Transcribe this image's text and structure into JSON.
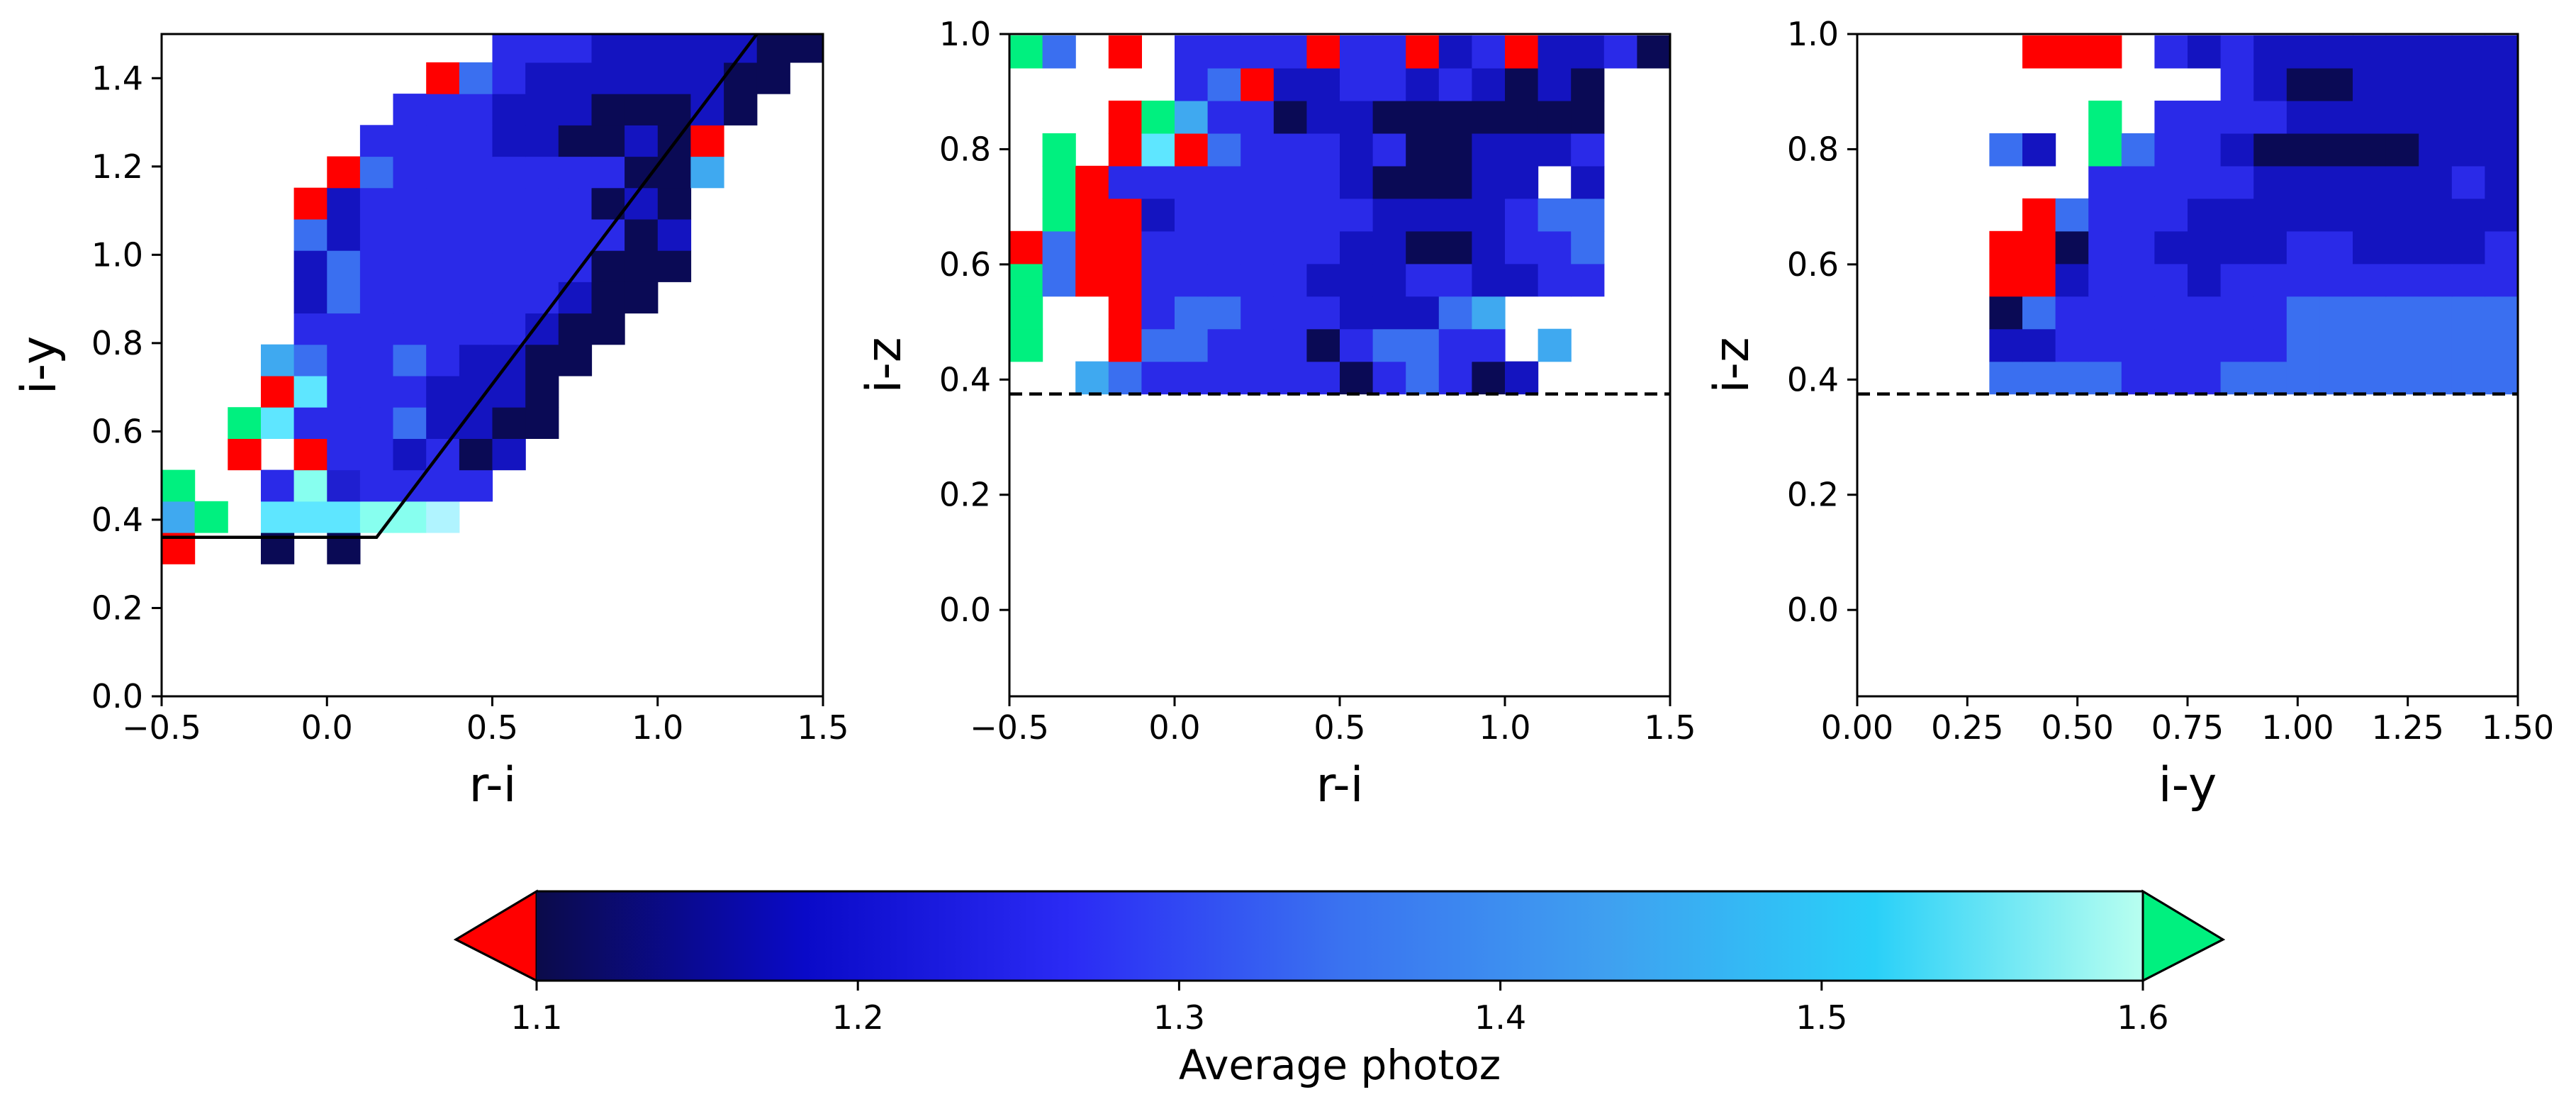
{
  "chart_data": [
    {
      "type": "heatmap",
      "xlabel": "r-i",
      "ylabel": "i-y",
      "xlim": [
        -0.5,
        1.5
      ],
      "ylim": [
        0.0,
        1.5
      ],
      "xticks": [
        "−0.5",
        "0.0",
        "0.5",
        "1.0",
        "1.5"
      ],
      "yticks": [
        "0.0",
        "0.2",
        "0.4",
        "0.6",
        "0.8",
        "1.0",
        "1.2",
        "1.4"
      ],
      "grid": false,
      "cell_size": 0.1,
      "row_y_start": 0.3,
      "row_y_step": 0.071,
      "rows": [
        [
          -0.5,
          "R - - N - N - - - - - - - - - - - - - -"
        ],
        [
          -0.5,
          "L G - Y Y Y M M H - - - - - - - - - - -"
        ],
        [
          -0.5,
          "G - - B M P B B B B - - - - - - - - - -"
        ],
        [
          -0.5,
          "- - R - R B B D B N D - - - - - - - - -"
        ],
        [
          -0.5,
          "- - G Y B B B A D D N N - - - - - - - -"
        ],
        [
          -0.5,
          "- - - R Y B B B D D D N - - - - - - - -"
        ],
        [
          -0.5,
          "- - - L A B B A B D D N N - - - - - - -"
        ],
        [
          -0.5,
          "- - - - B B B B B B B D N N - - - - - -"
        ],
        [
          -0.5,
          "- - - - D A B B B B B B D N N - - - - -"
        ],
        [
          -0.5,
          "- - - - D A B B B B B B B N N N - - - -"
        ],
        [
          -0.5,
          "- - - - A D B B B B B B B B N D - - - -"
        ],
        [
          -0.5,
          "- - - - R D B B B B B B B N D N - - - -"
        ],
        [
          -0.5,
          "- - - - - R A B B B B B B B N N L - - -"
        ],
        [
          -0.5,
          "- - - - - - B B B B D D N N D N R - - -"
        ],
        [
          -0.5,
          "- - - - - - - B B B D D D N N N D N - -"
        ],
        [
          -0.5,
          "- - - - - - - - R A B D D D D D D N N -"
        ],
        [
          -0.5,
          "- - - - - - - - - - B B B D D D D D N N"
        ],
        [
          -0.5,
          "- - - - - - - - - - - - - - - - - - - -"
        ]
      ],
      "selection_line": [
        [
          -0.5,
          0.36
        ],
        [
          0.15,
          0.36
        ],
        [
          1.3,
          1.5
        ]
      ]
    },
    {
      "type": "heatmap",
      "xlabel": "r-i",
      "ylabel": "i-z",
      "xlim": [
        -0.5,
        1.5
      ],
      "ylim": [
        -0.15,
        1.0
      ],
      "xticks": [
        "−0.5",
        "0.0",
        "0.5",
        "1.0",
        "1.5"
      ],
      "yticks": [
        "0.0",
        "0.2",
        "0.4",
        "0.6",
        "0.8",
        "1.0"
      ],
      "grid": false,
      "cell_size": 0.1,
      "row_y_start": 0.375,
      "row_y_step": 0.0566,
      "rows": [
        [
          -0.5,
          "- - L A B B B B B B N B A B N D - - - -"
        ],
        [
          -0.5,
          "G - - R A A B B B N B A A B B - L - - -"
        ],
        [
          -0.5,
          "G - - R B A A B B B D D D A L - - - - -"
        ],
        [
          -0.5,
          "G A R R B B B B B D D D B B D D B B - -"
        ],
        [
          -0.5,
          "R A R R B B B B B B D D N N D B B A - -"
        ],
        [
          -0.5,
          "- G R R D B B B B B B D D D D B A A - -"
        ],
        [
          -0.5,
          "- G R B B B B B B B D N N N D D - D - -"
        ],
        [
          -0.5,
          "- G - R Y R A B B B D B N N D D D B - -"
        ],
        [
          -0.5,
          "- - - R G L B B N D D N N N N N N N - -"
        ],
        [
          -0.5,
          "- - - - - B A R D D B B D B D N D N - -"
        ],
        [
          -0.5,
          "G A - R - B B B B R B B R D B R D D B N"
        ]
      ],
      "threshold_line": 0.375
    },
    {
      "type": "heatmap",
      "xlabel": "i-y",
      "ylabel": "i-z",
      "xlim": [
        0.0,
        1.5
      ],
      "ylim": [
        -0.15,
        1.0
      ],
      "xticks": [
        "0.00",
        "0.25",
        "0.50",
        "0.75",
        "1.00",
        "1.25",
        "1.50"
      ],
      "yticks": [
        "0.0",
        "0.2",
        "0.4",
        "0.6",
        "0.8",
        "1.0"
      ],
      "grid": false,
      "cell_size": 0.075,
      "row_y_start": 0.375,
      "row_y_step": 0.0566,
      "rows": [
        [
          0.3,
          "A A A A B B B A A A A A A A A A L L A A A"
        ],
        [
          0.3,
          "D D B B B B B B B A A A A A A A A A A A B"
        ],
        [
          0.3,
          "N A B B B B B B B A A A A A A A A A A A A"
        ],
        [
          0.3,
          "R R D B B B D B B B B B B B B B B A B N A"
        ],
        [
          0.3,
          "R R N B B D D D D B B D D D D B B B D N A"
        ],
        [
          0.3,
          "- R A B B B D D D D D D D D D D D D D B A"
        ],
        [
          0.3,
          "- - - B B B B B D D D D D D B D D D D D B"
        ],
        [
          0.3,
          "A D - G A B B D N N N N N D D D D N D D D"
        ],
        [
          0.3,
          "- - - G - B B B B D D D D D D D D N D D D"
        ],
        [
          0.3,
          "- - - - - - - B D N N D D D D D D D D D D"
        ],
        [
          0.3,
          "- R R R - B D B D D D D D D D D D D D D D"
        ]
      ],
      "threshold_line": 0.375
    }
  ],
  "colorbar": {
    "label": "Average photoz",
    "min": 1.1,
    "max": 1.6,
    "ticks": [
      "1.1",
      "1.2",
      "1.3",
      "1.4",
      "1.5",
      "1.6"
    ],
    "gradient_stops": [
      "#0b0b4a",
      "#0a0ac8",
      "#2b2bf5",
      "#3a72f0",
      "#3fa0f0",
      "#2ad0f8",
      "#b8fff0"
    ],
    "under_color": "#ff0000",
    "over_color": "#00f07f"
  },
  "palette": {
    "R": "#ff0000",
    "G": "#00f07f",
    "N": "#0a0a55",
    "D": "#1414c0",
    "B": "#2a2ae8",
    "A": "#3a6ff0",
    "L": "#3fa9f0",
    "Y": "#5ee6ff",
    "M": "#87ffef",
    "H": "#b0f4ff",
    "P": "#1f1fd0"
  }
}
